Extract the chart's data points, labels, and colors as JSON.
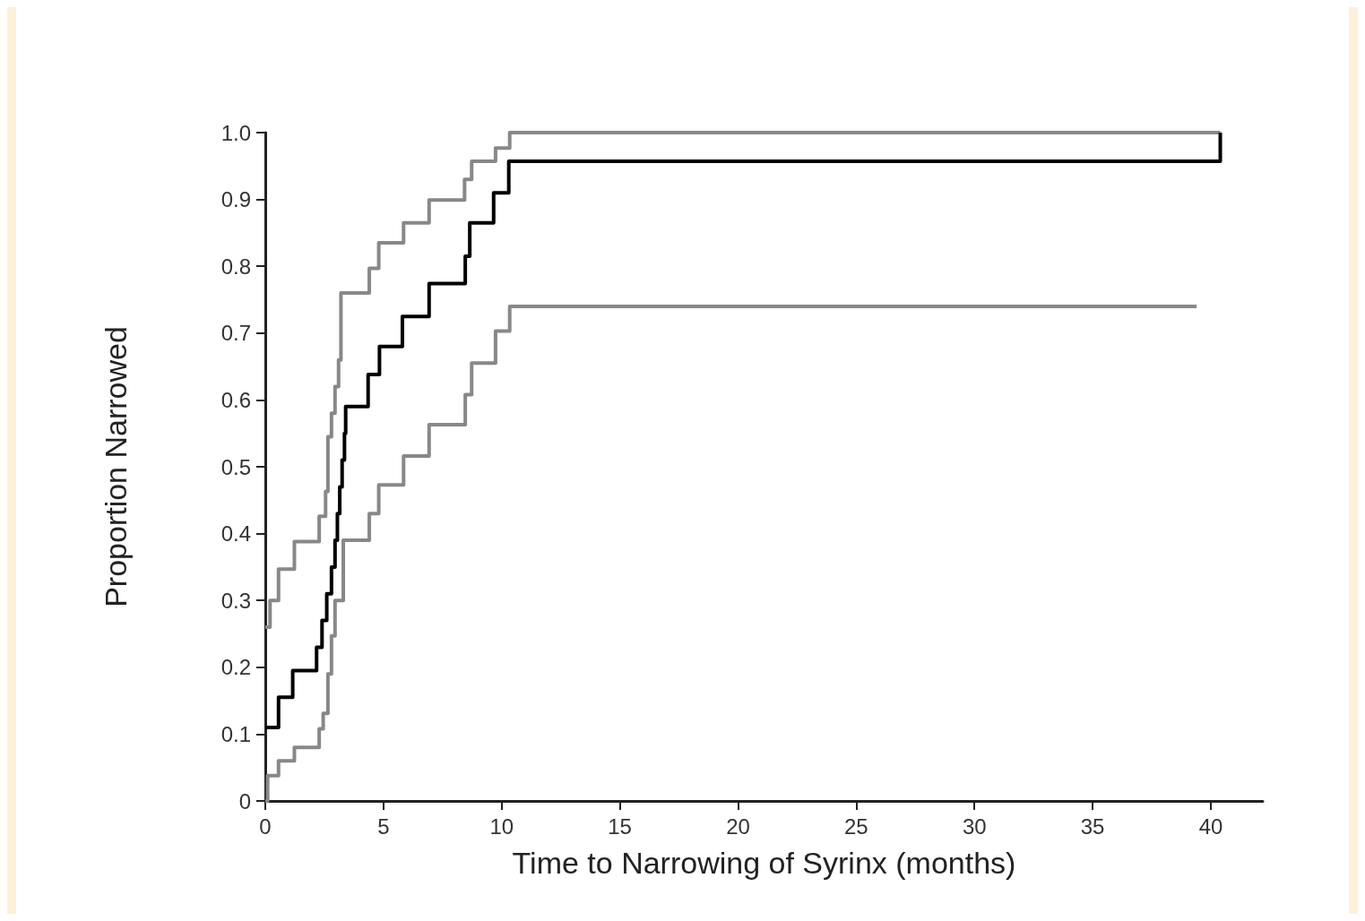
{
  "chart_data": {
    "type": "step",
    "xlabel": "Time to Narrowing of Syrinx (months)",
    "ylabel": "Proportion Narrowed",
    "xlim": [
      0,
      42.2
    ],
    "ylim": [
      0,
      1
    ],
    "xticks": [
      0,
      5,
      10,
      15,
      20,
      25,
      30,
      35,
      40
    ],
    "yticks": [
      0,
      0.1,
      0.2,
      0.3,
      0.4,
      0.5,
      0.6,
      0.7,
      0.8,
      0.9,
      {
        "value": 1,
        "label": "1.0"
      }
    ],
    "grid": false,
    "marker": "none",
    "line_style": "solid",
    "series": [
      {
        "color": "#888888",
        "x": [
          0,
          0.2,
          0.56,
          1.23,
          2.28,
          2.55,
          2.65,
          2.8,
          2.95,
          3.1,
          3.2,
          4.4,
          4.8,
          5.85,
          6.93,
          8.43,
          8.73,
          9.74,
          10.34,
          40.4
        ],
        "values": [
          0.26,
          0.3,
          0.347,
          0.388,
          0.426,
          0.463,
          0.545,
          0.58,
          0.62,
          0.66,
          0.76,
          0.797,
          0.835,
          0.865,
          0.899,
          0.93,
          0.957,
          0.977,
          1.0,
          1.0
        ]
      },
      {
        "color": "#888888",
        "x": [
          0,
          0.1,
          0.56,
          1.23,
          2.28,
          2.45,
          2.65,
          2.8,
          2.95,
          3.3,
          4.4,
          4.8,
          5.85,
          6.93,
          8.46,
          8.73,
          9.74,
          10.34,
          39.4
        ],
        "values": [
          0,
          0.038,
          0.06,
          0.08,
          0.108,
          0.131,
          0.19,
          0.247,
          0.3,
          0.39,
          0.43,
          0.473,
          0.516,
          0.563,
          0.608,
          0.655,
          0.703,
          0.74,
          0.74
        ]
      },
      {
        "color": "#000000",
        "x": [
          0,
          0.56,
          1.16,
          2.17,
          2.4,
          2.6,
          2.8,
          2.95,
          3.05,
          3.15,
          3.25,
          3.35,
          3.4,
          4.35,
          4.83,
          5.8,
          6.93,
          8.46,
          8.65,
          9.66,
          10.3,
          40.4
        ],
        "values": [
          0.11,
          0.155,
          0.195,
          0.23,
          0.27,
          0.31,
          0.35,
          0.39,
          0.43,
          0.47,
          0.51,
          0.55,
          0.59,
          0.638,
          0.68,
          0.725,
          0.774,
          0.815,
          0.865,
          0.91,
          0.957,
          1.0
        ]
      }
    ]
  }
}
